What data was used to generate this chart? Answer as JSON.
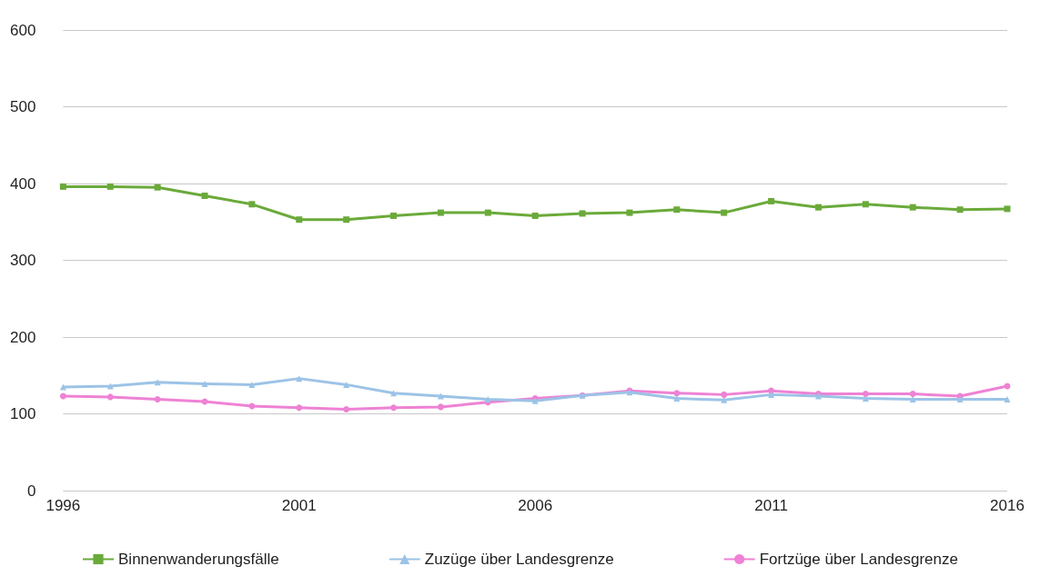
{
  "chart_data": {
    "type": "line",
    "x": [
      1996,
      1997,
      1998,
      1999,
      2000,
      2001,
      2002,
      2003,
      2004,
      2005,
      2006,
      2007,
      2008,
      2009,
      2010,
      2011,
      2012,
      2013,
      2014,
      2015,
      2016
    ],
    "series": [
      {
        "name": "Binnenwanderungsfälle",
        "color": "#6aaa3a",
        "marker": "square",
        "values": [
          396,
          396,
          395,
          384,
          373,
          353,
          353,
          358,
          362,
          362,
          358,
          361,
          362,
          366,
          362,
          377,
          369,
          373,
          369,
          366,
          367
        ]
      },
      {
        "name": "Zuzüge über Landesgrenze",
        "color": "#9cc3e6",
        "marker": "triangle",
        "values": [
          135,
          136,
          141,
          139,
          138,
          146,
          138,
          127,
          123,
          119,
          117,
          124,
          128,
          120,
          118,
          125,
          123,
          120,
          119,
          119,
          119
        ]
      },
      {
        "name": "Fortzüge über Landesgrenze",
        "color": "#ee82d4",
        "marker": "circle",
        "values": [
          123,
          122,
          119,
          116,
          110,
          108,
          106,
          108,
          109,
          115,
          120,
          124,
          130,
          127,
          125,
          130,
          126,
          126,
          126,
          123,
          136
        ]
      }
    ],
    "xlim": [
      1996,
      2016
    ],
    "xticks": [
      1996,
      2001,
      2006,
      2011,
      2016
    ],
    "ylim": [
      0,
      600
    ],
    "yticks": [
      0,
      100,
      200,
      300,
      400,
      500,
      600
    ],
    "grid": "y",
    "legend": "bottom"
  }
}
